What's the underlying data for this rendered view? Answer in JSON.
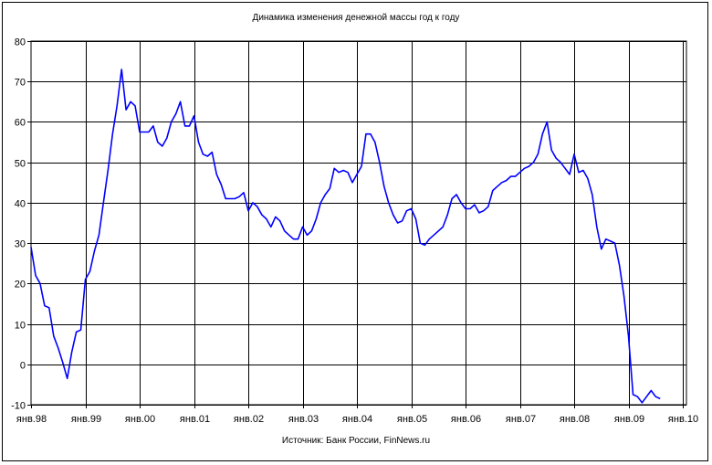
{
  "title": "Динамика изменения денежной массы год к году",
  "source": "Источник: Банк России, FinNews.ru",
  "colors": {
    "line": "#0000ff",
    "grid": "#000000",
    "background": "#ffffff"
  },
  "chart_data": {
    "type": "line",
    "title": "Динамика изменения денежной массы год к году",
    "xlabel": "",
    "ylabel": "",
    "ylim": [
      -10,
      80
    ],
    "y_ticks": [
      -10,
      0,
      10,
      20,
      30,
      40,
      50,
      60,
      70,
      80
    ],
    "x_ticks": [
      "янв.98",
      "янв.99",
      "янв.00",
      "янв.01",
      "янв.02",
      "янв.03",
      "янв.04",
      "янв.05",
      "янв.06",
      "янв.07",
      "янв.08",
      "янв.09",
      "янв.10"
    ],
    "grid": true,
    "legend": "none",
    "series": [
      {
        "x": [
          "1998-01",
          "1998-02",
          "1998-03",
          "1998-04",
          "1998-05",
          "1998-06",
          "1998-07",
          "1998-08",
          "1998-09",
          "1998-10",
          "1998-11",
          "1998-12",
          "1999-01",
          "1999-02",
          "1999-03",
          "1999-04",
          "1999-05",
          "1999-06",
          "1999-07",
          "1999-08",
          "1999-09",
          "1999-10",
          "1999-11",
          "1999-12",
          "2000-01",
          "2000-02",
          "2000-03",
          "2000-04",
          "2000-05",
          "2000-06",
          "2000-07",
          "2000-08",
          "2000-09",
          "2000-10",
          "2000-11",
          "2000-12",
          "2001-01",
          "2001-02",
          "2001-03",
          "2001-04",
          "2001-05",
          "2001-06",
          "2001-07",
          "2001-08",
          "2001-09",
          "2001-10",
          "2001-11",
          "2001-12",
          "2002-01",
          "2002-02",
          "2002-03",
          "2002-04",
          "2002-05",
          "2002-06",
          "2002-07",
          "2002-08",
          "2002-09",
          "2002-10",
          "2002-11",
          "2002-12",
          "2003-01",
          "2003-02",
          "2003-03",
          "2003-04",
          "2003-05",
          "2003-06",
          "2003-07",
          "2003-08",
          "2003-09",
          "2003-10",
          "2003-11",
          "2003-12",
          "2004-01",
          "2004-02",
          "2004-03",
          "2004-04",
          "2004-05",
          "2004-06",
          "2004-07",
          "2004-08",
          "2004-09",
          "2004-10",
          "2004-11",
          "2004-12",
          "2005-01",
          "2005-02",
          "2005-03",
          "2005-04",
          "2005-05",
          "2005-06",
          "2005-07",
          "2005-08",
          "2005-09",
          "2005-10",
          "2005-11",
          "2005-12",
          "2006-01",
          "2006-02",
          "2006-03",
          "2006-04",
          "2006-05",
          "2006-06",
          "2006-07",
          "2006-08",
          "2006-09",
          "2006-10",
          "2006-11",
          "2006-12",
          "2007-01",
          "2007-02",
          "2007-03",
          "2007-04",
          "2007-05",
          "2007-06",
          "2007-07",
          "2007-08",
          "2007-09",
          "2007-10",
          "2007-11",
          "2007-12",
          "2008-01",
          "2008-02",
          "2008-03",
          "2008-04",
          "2008-05",
          "2008-06",
          "2008-07",
          "2008-08",
          "2008-09",
          "2008-10",
          "2008-11",
          "2008-12",
          "2009-01",
          "2009-02",
          "2009-03",
          "2009-04",
          "2009-05",
          "2009-06",
          "2009-07",
          "2009-08"
        ],
        "values": [
          29,
          22,
          20,
          14.5,
          14,
          7,
          4,
          0.5,
          -3.5,
          3,
          8,
          8.5,
          21,
          23,
          28,
          32,
          40,
          48,
          57,
          64,
          73,
          63,
          65,
          64,
          57.5,
          57.5,
          57.5,
          59,
          55,
          54,
          56,
          60,
          62,
          65,
          59,
          59,
          61.5,
          55,
          52,
          51.5,
          52.5,
          47,
          44.5,
          41,
          41,
          41,
          41.5,
          42.5,
          38,
          40,
          39,
          37,
          36,
          34,
          36.5,
          35.5,
          33,
          32,
          31,
          31,
          34,
          32,
          33,
          36,
          40,
          42,
          43.5,
          48.5,
          47.5,
          48,
          47.5,
          45,
          47,
          49,
          57,
          57,
          55,
          50,
          44,
          40,
          37,
          35,
          35.5,
          38,
          38.5,
          36,
          30,
          29.5,
          31,
          32,
          33,
          34,
          37,
          41,
          42,
          40,
          38.5,
          38.5,
          39.5,
          37.5,
          38,
          39,
          43,
          44,
          45,
          45.5,
          46.5,
          46.5,
          47.5,
          48.5,
          49,
          50,
          52,
          57,
          60,
          53,
          51,
          50,
          48.5,
          47,
          52,
          47.5,
          48,
          46,
          42,
          34,
          28.5,
          31,
          30.5,
          30,
          24.5,
          17,
          7,
          -7.5,
          -8,
          -9.5,
          -8,
          -6.5,
          -8,
          -8.5
        ]
      }
    ]
  }
}
